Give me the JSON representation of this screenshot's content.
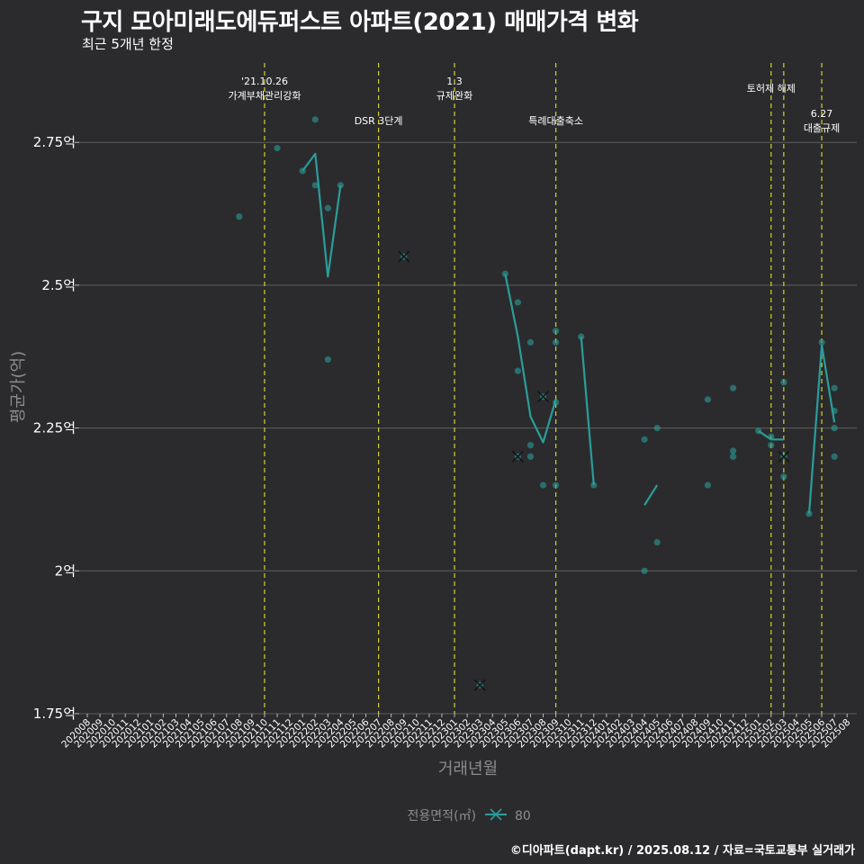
{
  "header": {
    "title": "구지 모아미래도에듀퍼스트 아파트(2021) 매매가격 변화",
    "subtitle": "최근 5개년 한정"
  },
  "footer": {
    "credit": "©디아파트(dapt.kr) / 2025.08.12 / 자료=국토교통부 실거래가"
  },
  "chart_data": {
    "type": "line",
    "title": "구지 모아미래도에듀퍼스트 아파트(2021) 매매가격 변화",
    "subtitle": "최근 5개년 한정",
    "xlabel": "거래년월",
    "ylabel": "평균가(억)",
    "ylim": [
      1.75,
      2.85
    ],
    "yticks": [
      {
        "value": 1.75,
        "label": "1.75억"
      },
      {
        "value": 2.0,
        "label": "2억"
      },
      {
        "value": 2.25,
        "label": "2.25억"
      },
      {
        "value": 2.5,
        "label": "2.5억"
      },
      {
        "value": 2.75,
        "label": "2.75억"
      }
    ],
    "xticks": [
      "202008",
      "202009",
      "202010",
      "202011",
      "202012",
      "202101",
      "202102",
      "202103",
      "202104",
      "202105",
      "202106",
      "202107",
      "202108",
      "202109",
      "202110",
      "202111",
      "202112",
      "202201",
      "202202",
      "202203",
      "202204",
      "202205",
      "202206",
      "202207",
      "202208",
      "202209",
      "202210",
      "202211",
      "202212",
      "202301",
      "202302",
      "202303",
      "202304",
      "202305",
      "202306",
      "202307",
      "202308",
      "202309",
      "202310",
      "202311",
      "202312",
      "202401",
      "202402",
      "202403",
      "202404",
      "202405",
      "202406",
      "202407",
      "202408",
      "202409",
      "202410",
      "202411",
      "202412",
      "202501",
      "202502",
      "202503",
      "202504",
      "202505",
      "202506",
      "202507",
      "202508"
    ],
    "legend": {
      "title": "전용면적(㎡)",
      "position": "bottom",
      "entries": [
        "80"
      ]
    },
    "colors": {
      "series": "#2a9d9a",
      "event": "#d4d42a",
      "grid": "#5e5e5e",
      "axis_text": "#ffffff",
      "axis_title": "#8c8c8c"
    },
    "events": [
      {
        "x": "202110",
        "label": "'21.10.26\n가계부채관리강화",
        "level": 0
      },
      {
        "x": "202207",
        "label": "DSR 3단계",
        "level": 2
      },
      {
        "x": "202301",
        "label": "1.3\n규제완화",
        "level": 0
      },
      {
        "x": "202309",
        "label": "특례대출축소",
        "level": 2
      },
      {
        "x": "202502",
        "label": "토허제 해제",
        "level": 1
      },
      {
        "x": "202503",
        "label": "",
        "level": 1
      },
      {
        "x": "202506",
        "label": "6.27\n대출규제",
        "level": 3
      }
    ],
    "series": [
      {
        "name": "80",
        "line": [
          [
            {
              "x": "202201",
              "y": 2.7
            },
            {
              "x": "202202",
              "y": 2.73
            },
            {
              "x": "202203",
              "y": 2.515
            },
            {
              "x": "202204",
              "y": 2.675
            }
          ],
          [
            {
              "x": "202305",
              "y": 2.52
            },
            {
              "x": "202306",
              "y": 2.41
            },
            {
              "x": "202307",
              "y": 2.27
            },
            {
              "x": "202308",
              "y": 2.225
            },
            {
              "x": "202309",
              "y": 2.3
            }
          ],
          [
            {
              "x": "202311",
              "y": 2.41
            },
            {
              "x": "202312",
              "y": 2.15
            }
          ],
          [
            {
              "x": "202404",
              "y": 2.115
            },
            {
              "x": "202405",
              "y": 2.15
            }
          ],
          [
            {
              "x": "202501",
              "y": 2.245
            },
            {
              "x": "202502",
              "y": 2.23
            },
            {
              "x": "202503",
              "y": 2.23
            }
          ],
          [
            {
              "x": "202505",
              "y": 2.1
            },
            {
              "x": "202506",
              "y": 2.395
            },
            {
              "x": "202507",
              "y": 2.26
            }
          ]
        ],
        "points": [
          {
            "x": "202108",
            "y": 2.62
          },
          {
            "x": "202111",
            "y": 2.74
          },
          {
            "x": "202201",
            "y": 2.7
          },
          {
            "x": "202202",
            "y": 2.79
          },
          {
            "x": "202202",
            "y": 2.675
          },
          {
            "x": "202203",
            "y": 2.635
          },
          {
            "x": "202203",
            "y": 2.37
          },
          {
            "x": "202204",
            "y": 2.675
          },
          {
            "x": "202305",
            "y": 2.52
          },
          {
            "x": "202306",
            "y": 2.47
          },
          {
            "x": "202306",
            "y": 2.35
          },
          {
            "x": "202307",
            "y": 2.4
          },
          {
            "x": "202307",
            "y": 2.22
          },
          {
            "x": "202307",
            "y": 2.2
          },
          {
            "x": "202308",
            "y": 2.15
          },
          {
            "x": "202309",
            "y": 2.42
          },
          {
            "x": "202309",
            "y": 2.4
          },
          {
            "x": "202309",
            "y": 2.295
          },
          {
            "x": "202309",
            "y": 2.15
          },
          {
            "x": "202311",
            "y": 2.41
          },
          {
            "x": "202312",
            "y": 2.15
          },
          {
            "x": "202404",
            "y": 2.23
          },
          {
            "x": "202404",
            "y": 2.0
          },
          {
            "x": "202405",
            "y": 2.25
          },
          {
            "x": "202405",
            "y": 2.05
          },
          {
            "x": "202409",
            "y": 2.3
          },
          {
            "x": "202409",
            "y": 2.15
          },
          {
            "x": "202411",
            "y": 2.32
          },
          {
            "x": "202411",
            "y": 2.21
          },
          {
            "x": "202411",
            "y": 2.2
          },
          {
            "x": "202501",
            "y": 2.245
          },
          {
            "x": "202502",
            "y": 2.235
          },
          {
            "x": "202502",
            "y": 2.22
          },
          {
            "x": "202503",
            "y": 2.33
          },
          {
            "x": "202503",
            "y": 2.165
          },
          {
            "x": "202505",
            "y": 2.1
          },
          {
            "x": "202506",
            "y": 2.4
          },
          {
            "x": "202507",
            "y": 2.32
          },
          {
            "x": "202507",
            "y": 2.28
          },
          {
            "x": "202507",
            "y": 2.25
          },
          {
            "x": "202507",
            "y": 2.2
          }
        ],
        "crosses": [
          {
            "x": "202209",
            "y": 2.55
          },
          {
            "x": "202303",
            "y": 1.8
          },
          {
            "x": "202306",
            "y": 2.2
          },
          {
            "x": "202308",
            "y": 2.305
          },
          {
            "x": "202503",
            "y": 2.2
          }
        ]
      }
    ]
  }
}
